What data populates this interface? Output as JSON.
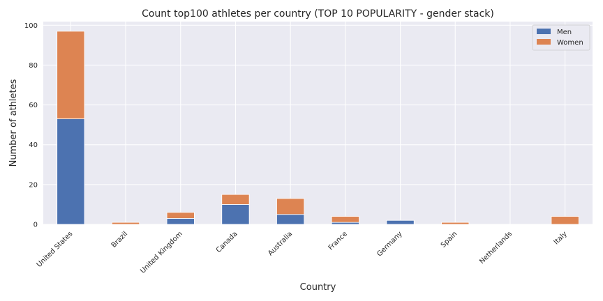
{
  "chart_data": {
    "type": "bar",
    "stacked": true,
    "title": "Count top100 athletes per country (TOP 10 POPULARITY - gender stack)",
    "xlabel": "Country",
    "ylabel": "Number of athletes",
    "categories": [
      "United States",
      "Brazil",
      "United Kingdom",
      "Canada",
      "Australia",
      "France",
      "Germany",
      "Spain",
      "Netherlands",
      "Italy"
    ],
    "series": [
      {
        "name": "Men",
        "color": "#4c72b0",
        "values": [
          53,
          0,
          3,
          10,
          5,
          1,
          2,
          0,
          0,
          0
        ]
      },
      {
        "name": "Women",
        "color": "#dd8452",
        "values": [
          44,
          1,
          3,
          5,
          8,
          3,
          0,
          1,
          0,
          4
        ]
      }
    ],
    "ylim": [
      0,
      101.85
    ],
    "yticks": [
      0,
      20,
      40,
      60,
      80,
      100
    ],
    "grid": true,
    "legend_position": "top-right",
    "background": "#eaeaf2"
  }
}
